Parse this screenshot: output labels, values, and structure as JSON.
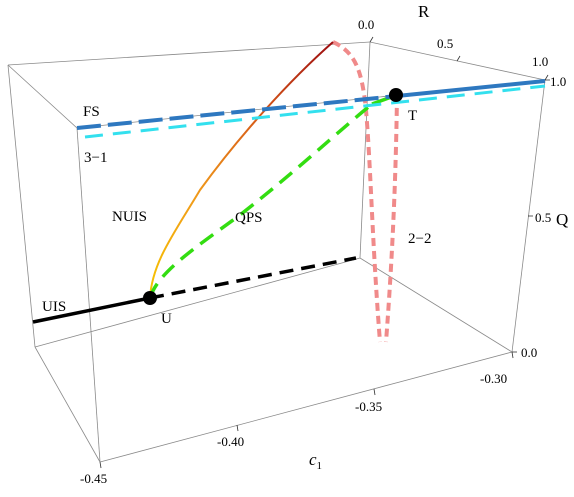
{
  "chart_data": {
    "type": "line",
    "dimensions": "3d",
    "axes": {
      "x": {
        "label": "c",
        "label_subscript": "1",
        "range": [
          -0.45,
          -0.3
        ],
        "ticks": [
          "-0.45",
          "-0.40",
          "-0.35",
          "-0.30"
        ]
      },
      "y": {
        "label": "R",
        "range": [
          0.0,
          1.0
        ],
        "ticks": [
          "0.0",
          "0.5",
          "1.0"
        ]
      },
      "z": {
        "label": "Q",
        "range": [
          0.0,
          1.0
        ],
        "ticks": [
          "0.0",
          "0.5",
          "1.0"
        ]
      }
    },
    "points": [
      {
        "name": "U",
        "c1": -0.43,
        "R": 0.0,
        "Q": 0.15
      },
      {
        "name": "T",
        "c1": -0.33,
        "R": 0.12,
        "Q": 1.0
      }
    ],
    "series": [
      {
        "label": "UIS",
        "style": "solid",
        "color": "#000000"
      },
      {
        "label": "",
        "style": "dashed",
        "color": "#000000"
      },
      {
        "label": "NUIS",
        "style": "solid-gradient",
        "colors": [
          "#f5c000",
          "#e07a20",
          "#a01010"
        ]
      },
      {
        "label": "QPS",
        "style": "dashed",
        "color": "#33dd11"
      },
      {
        "label": "FS",
        "style": "long-dashed",
        "color": "#2e78c0"
      },
      {
        "label": "3-1",
        "style": "dashed",
        "color": "#33e0ee"
      },
      {
        "label": "2-2",
        "style": "dashed",
        "color": "#f08a8a"
      }
    ],
    "grid": false,
    "legend": "none"
  },
  "text": {
    "ticks_x": [
      "-0.45",
      "-0.40",
      "-0.35",
      "-0.30"
    ],
    "ticks_R": [
      "0.0",
      "0.5",
      "1.0"
    ],
    "ticks_Q": [
      "1.0",
      "0.5",
      "0.0"
    ],
    "label_x_main": "c",
    "label_x_sub": "1",
    "label_R": "R",
    "label_Q": "Q",
    "annot_FS": "FS",
    "annot_31": "3−1",
    "annot_NUIS": "NUIS",
    "annot_QPS": "QPS",
    "annot_22": "2−2",
    "annot_UIS": "UIS",
    "annot_U": "U",
    "annot_T": "T"
  }
}
